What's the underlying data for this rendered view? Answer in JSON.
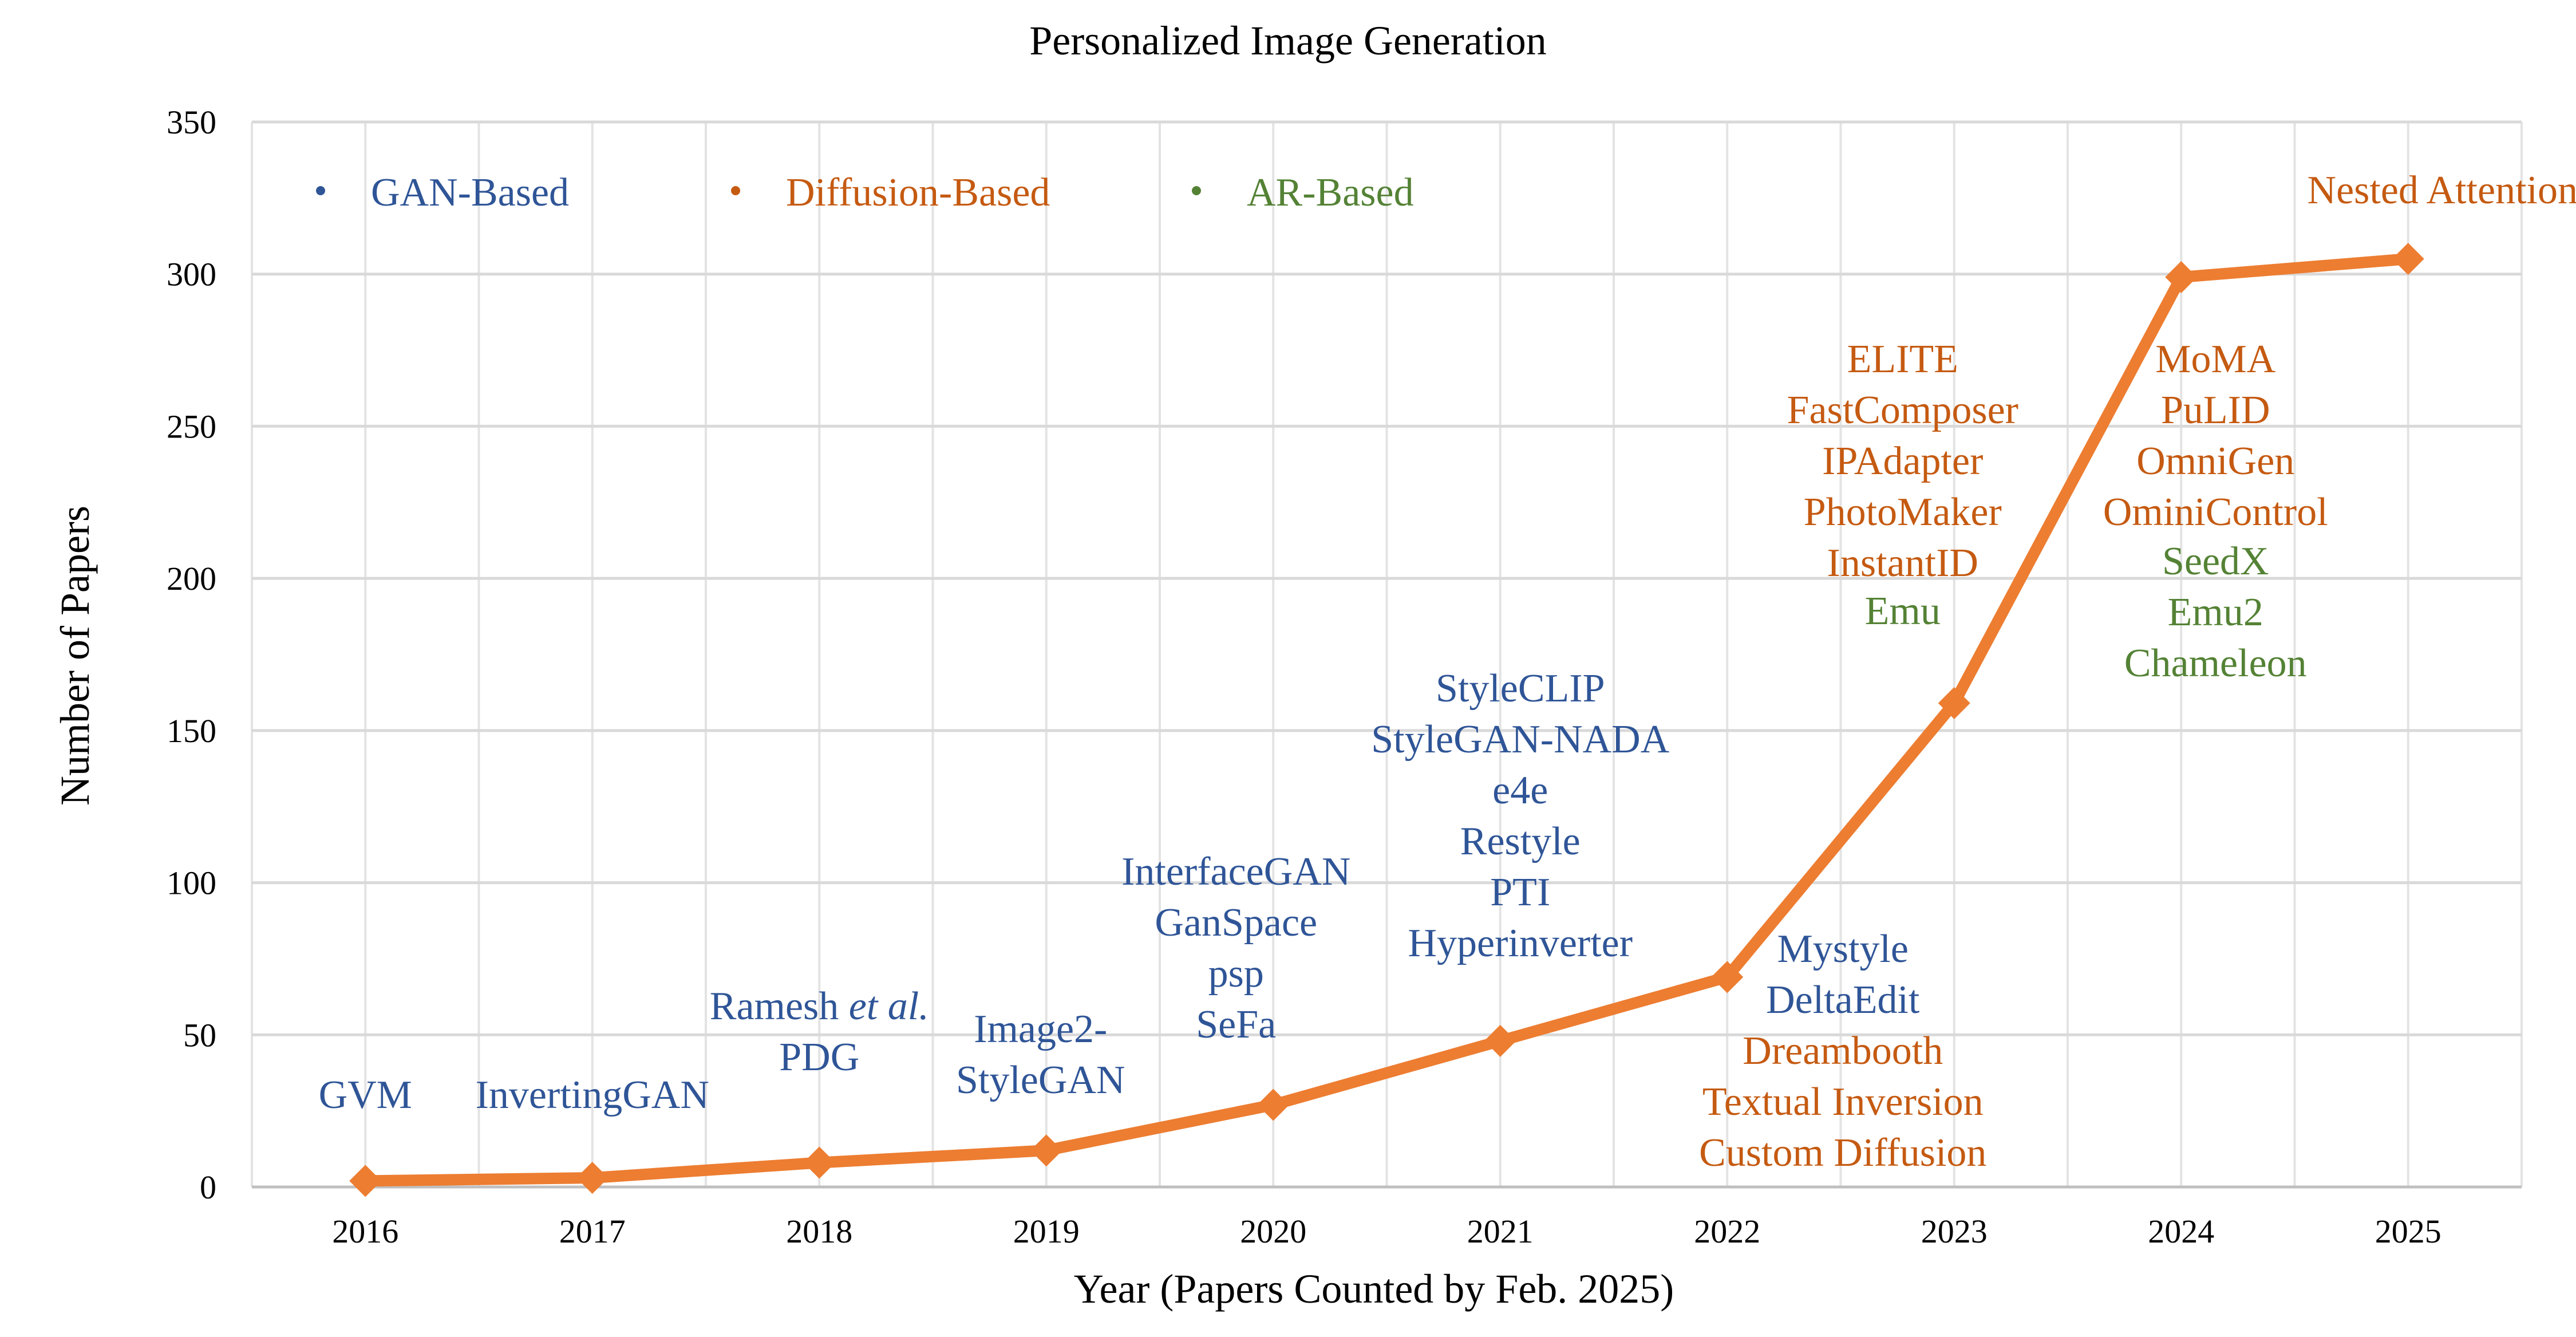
{
  "chart_data": {
    "type": "line",
    "title": "Personalized Image Generation",
    "xlabel": "Year (Papers Counted by Feb. 2025)",
    "ylabel": "Number of Papers",
    "ylim": [
      0,
      350
    ],
    "yticks": [
      0,
      50,
      100,
      150,
      200,
      250,
      300,
      350
    ],
    "grid": true,
    "categories": [
      "2016",
      "2017",
      "2018",
      "2019",
      "2020",
      "2021",
      "2022",
      "2023",
      "2024",
      "2025"
    ],
    "series": [
      {
        "name": "Number of Papers",
        "color": "#ED7D31",
        "marker": "diamond",
        "values": [
          2,
          3,
          8,
          12,
          27,
          48,
          69,
          159,
          299,
          305
        ]
      }
    ],
    "legend": {
      "placement": "top-left",
      "items": [
        {
          "label": "GAN-Based",
          "color": "#2F5597"
        },
        {
          "label": "Diffusion-Based",
          "color": "#C55A11"
        },
        {
          "label": "AR-Based",
          "color": "#548235"
        }
      ]
    },
    "annotations": [
      {
        "year": "2016",
        "kind": "GAN-Based",
        "lines": [
          "GVM"
        ]
      },
      {
        "year": "2017",
        "kind": "GAN-Based",
        "lines": [
          "InvertingGAN"
        ]
      },
      {
        "year": "2018",
        "kind": "GAN-Based",
        "lines": [
          "Ramesh et al.",
          "PDG"
        ]
      },
      {
        "year": "2019",
        "kind": "GAN-Based",
        "lines": [
          "Image2-",
          "StyleGAN"
        ]
      },
      {
        "year": "2020",
        "kind": "GAN-Based",
        "lines": [
          "InterfaceGAN",
          "GanSpace",
          "psp",
          "SeFa"
        ]
      },
      {
        "year": "2021",
        "kind": "GAN-Based",
        "lines": [
          "StyleCLIP",
          "StyleGAN-NADA",
          "e4e",
          "Restyle",
          "PTI",
          "Hyperinverter"
        ]
      },
      {
        "year": "2022",
        "kind": "GAN-Based",
        "lines": [
          "Mystyle",
          "DeltaEdit"
        ]
      },
      {
        "year": "2022",
        "kind": "Diffusion-Based",
        "lines": [
          "Dreambooth",
          "Textual Inversion",
          "Custom Diffusion"
        ]
      },
      {
        "year": "2023",
        "kind": "Diffusion-Based",
        "lines": [
          "ELITE",
          "FastComposer",
          "IPAdapter",
          "PhotoMaker",
          "InstantID"
        ]
      },
      {
        "year": "2023",
        "kind": "AR-Based",
        "lines": [
          "Emu"
        ]
      },
      {
        "year": "2024",
        "kind": "Diffusion-Based",
        "lines": [
          "MoMA",
          "PuLID",
          "OmniGen",
          "OminiControl"
        ]
      },
      {
        "year": "2024",
        "kind": "AR-Based",
        "lines": [
          "SeedX",
          "Emu2",
          "Chameleon"
        ]
      },
      {
        "year": "2025",
        "kind": "Diffusion-Based",
        "lines": [
          "Nested Attention"
        ]
      }
    ]
  }
}
